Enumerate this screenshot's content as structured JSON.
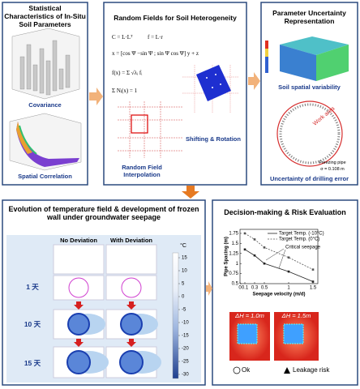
{
  "panels": {
    "soil_stats": {
      "title": "Statistical Characteristics of In-Situ Soil Parameters",
      "labels": [
        "Covariance",
        "Spatial Correlation"
      ]
    },
    "random_fields": {
      "title": "Random Fields for Soil Heterogeneity",
      "formulas": [
        "C = L·Lᵀ",
        "f = L·r",
        "x = [cos Ψ  −sin Ψ ; sin Ψ  cos Ψ] y + z",
        "f(x) = Σ √λᵢ fᵢ",
        "Σ Nᵢ(x) = 1"
      ],
      "labels": [
        "Random Field Interpolation",
        "Shifting & Rotation"
      ]
    },
    "uncertainty": {
      "title": "Parameter Uncertainty Representation",
      "labels": [
        "Soil spatial variability",
        "Uncertainty of drilling error"
      ],
      "annotations": [
        "Work area",
        "Freezing pipe",
        "σ = 0.108 m"
      ]
    },
    "temperature": {
      "title": "Evolution of temperature field & development of frozen wall under groundwater seepage",
      "columns": [
        "No Deviation",
        "With Deviation"
      ],
      "rows": [
        "1 天",
        "10 天",
        "15 天"
      ],
      "colorbar": {
        "unit": "°C",
        "ticks": [
          15,
          10,
          5,
          0,
          -5,
          -10,
          -15,
          -20,
          -25,
          -30
        ]
      }
    },
    "decision": {
      "title": "Decision-making & Risk Evaluation",
      "chart": {
        "type": "line",
        "xlabel": "Seepage velocity (m/d)",
        "ylabel": "Pipe Spacing (m)",
        "x": [
          0.1,
          0.3,
          0.5,
          1,
          1.5
        ],
        "series": [
          {
            "name": "Target Temp. (-10°C)",
            "color": "#222222",
            "line_style": "solid",
            "values": [
              1.35,
              1.2,
              1.0,
              0.8,
              0.55
            ]
          },
          {
            "name": "Target Temp. (0°C)",
            "color": "#555555",
            "line_style": "dashed",
            "values": [
              1.75,
              1.6,
              1.4,
              1.15,
              0.85
            ]
          }
        ],
        "annotation": "Critical seepage",
        "xlim": [
          0,
          1.6
        ],
        "xticks": [
          0,
          0.1,
          0.3,
          0.5,
          1,
          1.5
        ],
        "ylim": [
          0.5,
          1.85
        ],
        "yticks": [
          0.5,
          0.75,
          1,
          1.25,
          1.5,
          1.75
        ]
      },
      "cases": [
        "ΔH = 1.0m",
        "ΔH = 1.5m"
      ],
      "outcomes": [
        "Ok",
        "Leakage risk"
      ]
    }
  }
}
